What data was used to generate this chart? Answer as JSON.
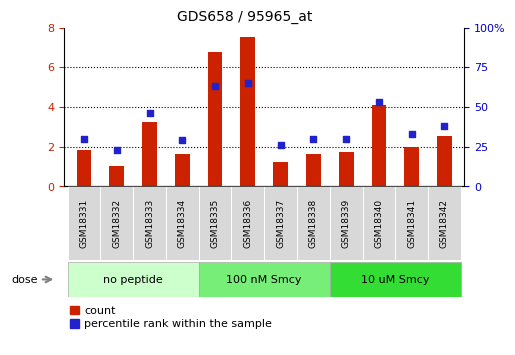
{
  "title": "GDS658 / 95965_at",
  "samples": [
    "GSM18331",
    "GSM18332",
    "GSM18333",
    "GSM18334",
    "GSM18335",
    "GSM18336",
    "GSM18337",
    "GSM18338",
    "GSM18339",
    "GSM18340",
    "GSM18341",
    "GSM18342"
  ],
  "counts": [
    1.85,
    1.0,
    3.25,
    1.65,
    6.75,
    7.55,
    1.25,
    1.65,
    1.75,
    4.1,
    2.0,
    2.55
  ],
  "percentiles": [
    30,
    23,
    46,
    29,
    63,
    65,
    26,
    30,
    30,
    53,
    33,
    38
  ],
  "bar_color": "#cc2200",
  "dot_color": "#2222cc",
  "ylim_left": [
    0,
    8
  ],
  "yticks_left": [
    0,
    2,
    4,
    6,
    8
  ],
  "ytick_labels_right": [
    "0",
    "25",
    "50",
    "75",
    "100%"
  ],
  "groups": [
    {
      "label": "no peptide",
      "start": 0,
      "end": 3,
      "color": "#ccffcc"
    },
    {
      "label": "100 nM Smcy",
      "start": 4,
      "end": 7,
      "color": "#77ee77"
    },
    {
      "label": "10 uM Smcy",
      "start": 8,
      "end": 11,
      "color": "#33dd33"
    }
  ],
  "legend_count_label": "count",
  "legend_pct_label": "percentile rank within the sample",
  "bar_width": 0.45
}
